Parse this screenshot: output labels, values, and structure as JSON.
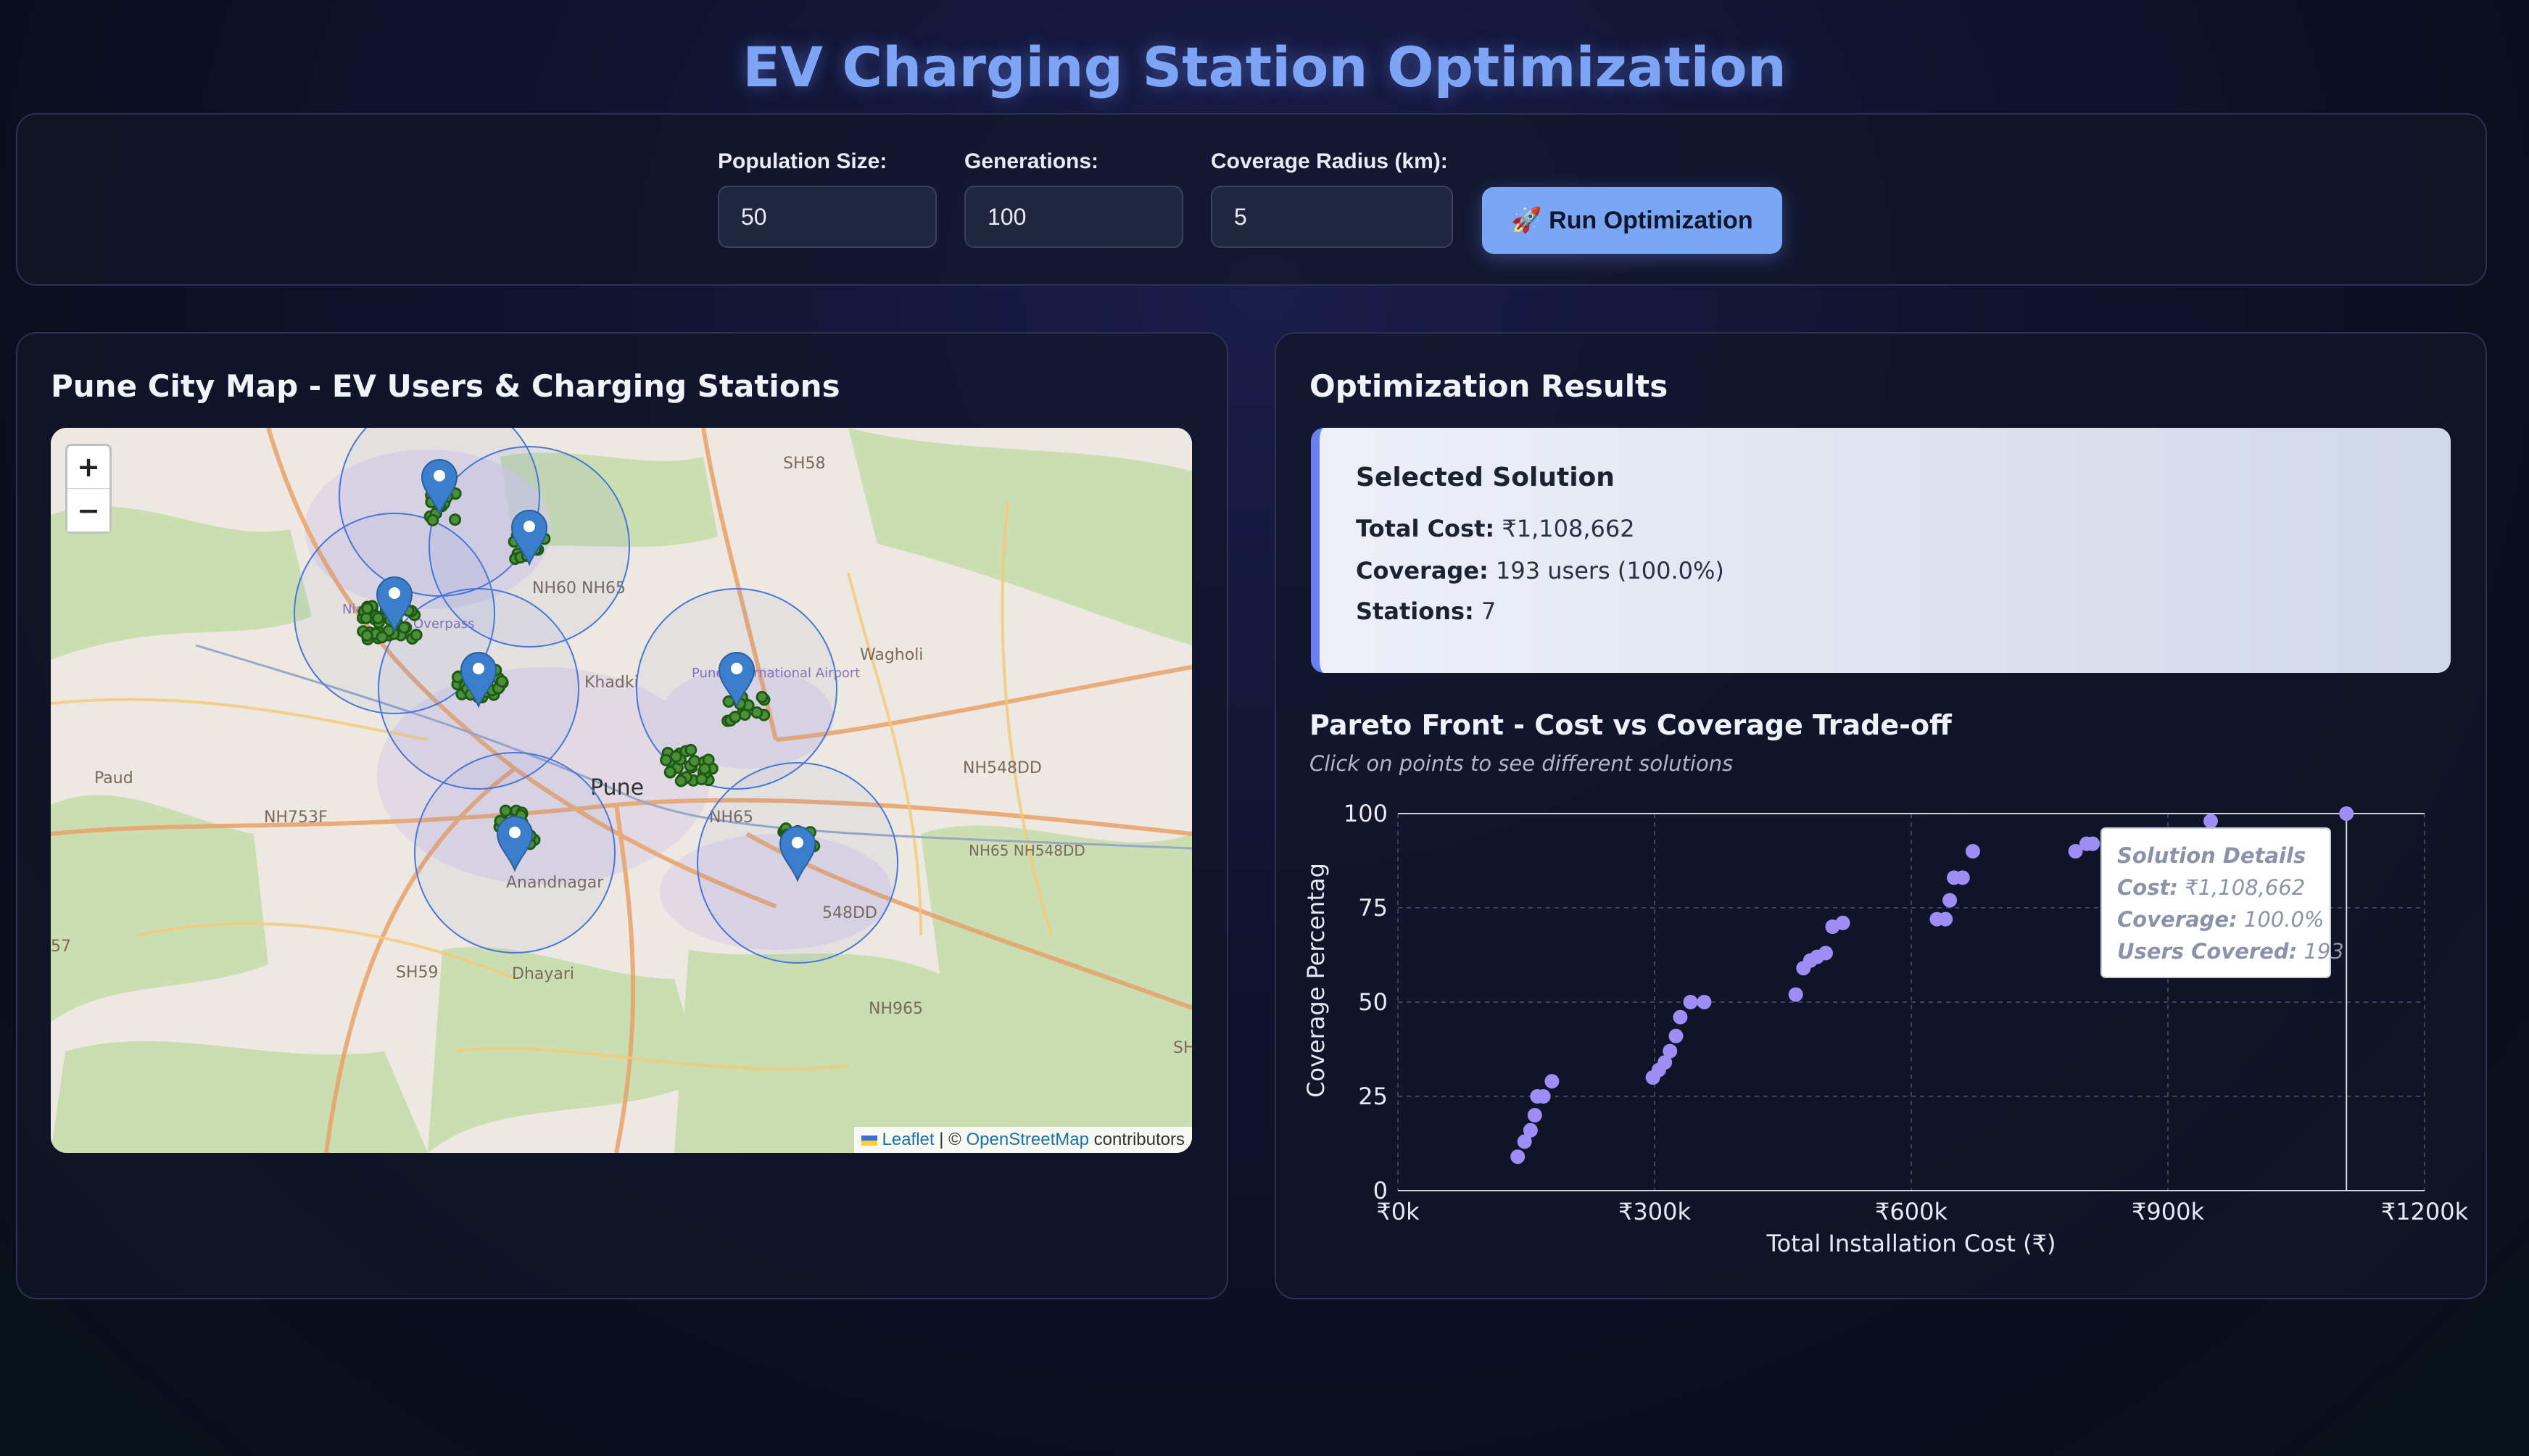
{
  "title": "EV Charging Station Optimization",
  "controls": {
    "population_size_label": "Population Size:",
    "population_size_value": "50",
    "generations_label": "Generations:",
    "generations_value": "100",
    "coverage_radius_label": "Coverage Radius (km):",
    "coverage_radius_value": "5",
    "run_button_label": "🚀 Run Optimization"
  },
  "map_panel": {
    "title": "Pune City Map - EV Users & Charging Stations",
    "zoom_in": "+",
    "zoom_out": "−",
    "place_labels": [
      "SH58",
      "NH60 NH65",
      "Wagholi",
      "Khadki",
      "Pune International Airport",
      "Paud",
      "NH753F",
      "Pune",
      "NH548DD",
      "NH65",
      "NH65 NH548DD",
      "Anandnagar",
      "548DD",
      "SH59",
      "Dhayari",
      "NH965",
      "Nigdi",
      "Overpass",
      "SH",
      "57"
    ],
    "attribution": {
      "leaflet": "Leaflet",
      "separator": " | © ",
      "osm": "OpenStreetMap",
      "suffix": " contributors"
    },
    "stations_shown": 7
  },
  "results_panel": {
    "title": "Optimization Results",
    "selected_solution": {
      "heading": "Selected Solution",
      "total_cost_label": "Total Cost:",
      "total_cost_value": "₹1,108,662",
      "coverage_label": "Coverage:",
      "coverage_value": "193 users (100.0%)",
      "stations_label": "Stations:",
      "stations_value": "7"
    },
    "chart_heading": "Pareto Front - Cost vs Coverage Trade-off",
    "chart_subtitle": "Click on points to see different solutions",
    "tooltip": {
      "title": "Solution Details",
      "cost_label": "Cost:",
      "cost_value": "₹1,108,662",
      "coverage_label": "Coverage:",
      "coverage_value": "100.0%",
      "users_label": "Users Covered:",
      "users_value": "193"
    }
  },
  "chart_data": {
    "type": "scatter",
    "title": "Pareto Front - Cost vs Coverage Trade-off",
    "xlabel": "Total Installation Cost (₹)",
    "ylabel": "Coverage Percentag",
    "xlim": [
      0,
      1200000
    ],
    "ylim": [
      0,
      100
    ],
    "x_ticks": [
      "₹0k",
      "₹300k",
      "₹600k",
      "₹900k",
      "₹1200k"
    ],
    "y_ticks": [
      "0",
      "25",
      "50",
      "75",
      "100"
    ],
    "grid": true,
    "point_color": "#9d8df5",
    "selected_x": 1108662,
    "x": [
      140000,
      148000,
      155000,
      160000,
      163000,
      170000,
      180000,
      298000,
      305000,
      312000,
      318000,
      325000,
      330000,
      342000,
      358000,
      465000,
      474000,
      482000,
      490000,
      500000,
      508000,
      520000,
      630000,
      640000,
      645000,
      650000,
      660000,
      672000,
      792000,
      805000,
      812000,
      950000,
      1108662
    ],
    "y": [
      9,
      13,
      16,
      20,
      25,
      25,
      29,
      30,
      32,
      34,
      37,
      41,
      46,
      50,
      50,
      52,
      59,
      61,
      62,
      63,
      70,
      71,
      72,
      72,
      77,
      83,
      83,
      90,
      90,
      92,
      92,
      98,
      100
    ]
  }
}
